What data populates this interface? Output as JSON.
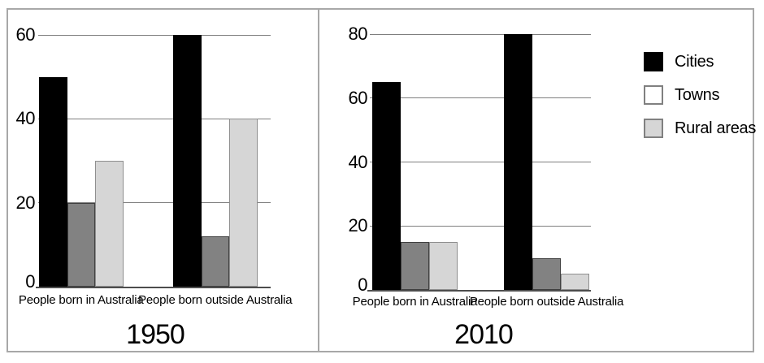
{
  "figure": {
    "panels": [
      {
        "title": "1950"
      },
      {
        "title": "2010"
      }
    ]
  },
  "legend": {
    "items": [
      {
        "label": "Cities",
        "swatch_fill": "#000000",
        "swatch_border": "#000000"
      },
      {
        "label": "Towns",
        "swatch_fill": "#ffffff",
        "swatch_border": "#808080"
      },
      {
        "label": "Rural areas",
        "swatch_fill": "#d6d6d6",
        "swatch_border": "#808080"
      }
    ]
  },
  "colors": {
    "cities_bar": "#000000",
    "towns_bar_fill": "#828282",
    "towns_bar_border": "#404040",
    "rural_bar_fill": "#d6d6d6",
    "rural_bar_border": "#8f8f8f",
    "gridline": "#7f7f7f",
    "axis_line": "#4d4d4d",
    "frame_border": "#a8a8a8",
    "text": "#000000"
  },
  "chart_data": [
    {
      "type": "bar",
      "title": "1950",
      "categories": [
        "People born in Australia",
        "People born outside Australia"
      ],
      "series": [
        {
          "name": "Cities",
          "values": [
            50,
            60
          ]
        },
        {
          "name": "Towns",
          "values": [
            20,
            12
          ]
        },
        {
          "name": "Rural areas",
          "values": [
            30,
            40
          ]
        }
      ],
      "ylim": [
        0,
        60
      ],
      "yticks": [
        0,
        20,
        40,
        60
      ],
      "grid": true,
      "legend_position": "none"
    },
    {
      "type": "bar",
      "title": "2010",
      "categories": [
        "People born in Australia",
        "People born outside Australia"
      ],
      "series": [
        {
          "name": "Cities",
          "values": [
            65,
            80
          ]
        },
        {
          "name": "Towns",
          "values": [
            15,
            10
          ]
        },
        {
          "name": "Rural areas",
          "values": [
            15,
            5
          ]
        }
      ],
      "ylim": [
        0,
        80
      ],
      "yticks": [
        0,
        20,
        40,
        60,
        80
      ],
      "grid": true,
      "legend_position": "right"
    }
  ]
}
